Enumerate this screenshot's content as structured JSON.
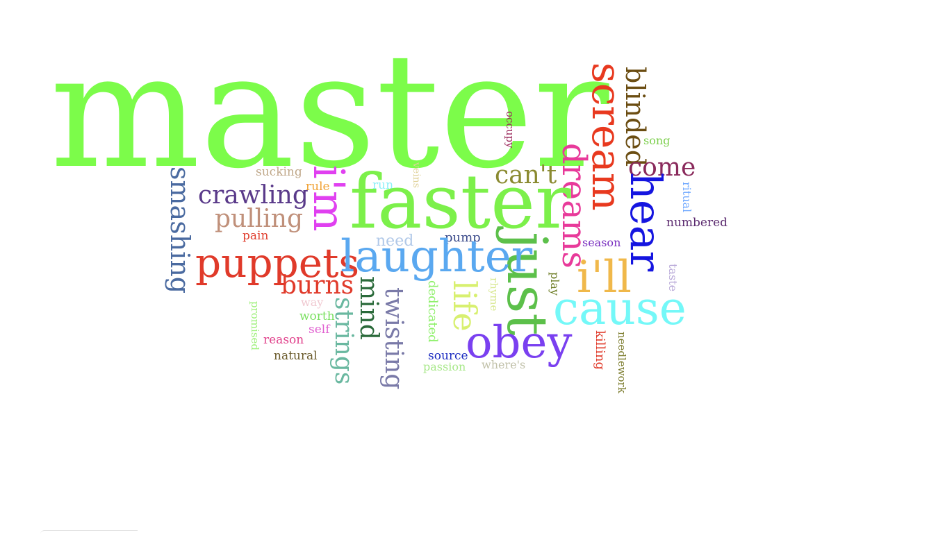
{
  "words": [
    {
      "text": "master",
      "color": "#7cfc4a"
    },
    {
      "text": "scream",
      "color": "#e8391f"
    },
    {
      "text": "blinded",
      "color": "#6b4d12"
    },
    {
      "text": "song",
      "color": "#7ccf4c"
    },
    {
      "text": "occupy",
      "color": "#9b2a5c"
    },
    {
      "text": "come",
      "color": "#8a2a5c"
    },
    {
      "text": "hear",
      "color": "#1515e0"
    },
    {
      "text": "ritual",
      "color": "#6fa8ff"
    },
    {
      "text": "numbered",
      "color": "#5b2a6f"
    },
    {
      "text": "dreams",
      "color": "#e83a9a"
    },
    {
      "text": "can't",
      "color": "#8a8a30"
    },
    {
      "text": "sucking",
      "color": "#c0a88a"
    },
    {
      "text": "veins",
      "color": "#e0d29a"
    },
    {
      "text": "smashing",
      "color": "#4a6aa0"
    },
    {
      "text": "i'm",
      "color": "#e040f0"
    },
    {
      "text": "rule",
      "color": "#f0a030"
    },
    {
      "text": "run",
      "color": "#8cf0f8"
    },
    {
      "text": "faster",
      "color": "#7cf04a"
    },
    {
      "text": "crawling",
      "color": "#5a3a8a"
    },
    {
      "text": "pulling",
      "color": "#c0907a"
    },
    {
      "text": "pain",
      "color": "#e04030"
    },
    {
      "text": "need",
      "color": "#b0c8e8"
    },
    {
      "text": "pump",
      "color": "#3a4a8a"
    },
    {
      "text": "season",
      "color": "#7a30c0"
    },
    {
      "text": "just",
      "color": "#5cc04a"
    },
    {
      "text": "puppets",
      "color": "#e03a2a"
    },
    {
      "text": "laughter",
      "color": "#5aa8f0"
    },
    {
      "text": "i'll",
      "color": "#f0b84a"
    },
    {
      "text": "taste",
      "color": "#b8a8d8"
    },
    {
      "text": "play",
      "color": "#6a7a20"
    },
    {
      "text": "burns",
      "color": "#e03a2a"
    },
    {
      "text": "rhyme",
      "color": "#d8e890"
    },
    {
      "text": "cause",
      "color": "#74f8f8"
    },
    {
      "text": "way",
      "color": "#f0c8d0"
    },
    {
      "text": "mind",
      "color": "#2a6a3a"
    },
    {
      "text": "twisting",
      "color": "#7a7aa8"
    },
    {
      "text": "dedicated",
      "color": "#8ef06a"
    },
    {
      "text": "life",
      "color": "#d8f070"
    },
    {
      "text": "worth",
      "color": "#7ae060"
    },
    {
      "text": "strings",
      "color": "#6ab8a0"
    },
    {
      "text": "promised",
      "color": "#9ef07a"
    },
    {
      "text": "self",
      "color": "#e060d0"
    },
    {
      "text": "reason",
      "color": "#e0408a"
    },
    {
      "text": "killing",
      "color": "#e03a2a"
    },
    {
      "text": "needlework",
      "color": "#7a7a2a"
    },
    {
      "text": "obey",
      "color": "#7a40f0"
    },
    {
      "text": "natural",
      "color": "#6a5a2a"
    },
    {
      "text": "source",
      "color": "#1a2ac0"
    },
    {
      "text": "where's",
      "color": "#c0c0a8"
    },
    {
      "text": "passion",
      "color": "#a8e88a"
    }
  ]
}
